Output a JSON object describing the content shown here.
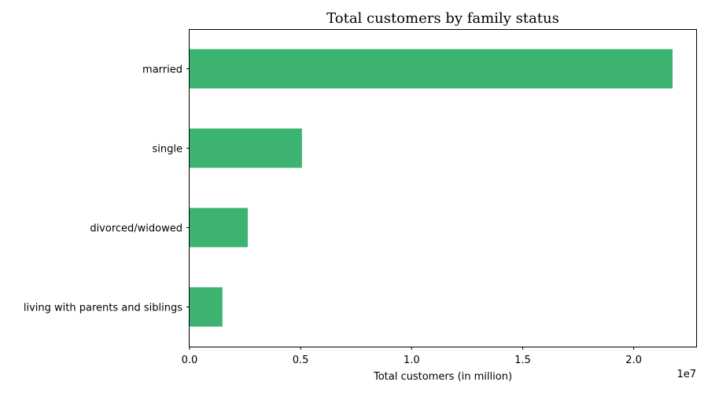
{
  "chart_data": {
    "type": "bar",
    "orientation": "horizontal",
    "title": "Total customers by family status",
    "xlabel": "Total customers (in million)",
    "ylabel": "",
    "x_offset_label": "1e7",
    "categories": [
      "married",
      "single",
      "divorced/widowed",
      "living with parents and siblings"
    ],
    "values": [
      21750000,
      5060000,
      2620000,
      1480000
    ],
    "xlim": [
      0,
      22850000
    ],
    "x_ticks": [
      0,
      5000000,
      10000000,
      15000000,
      20000000
    ],
    "x_tick_labels": [
      "0.0",
      "0.5",
      "1.0",
      "1.5",
      "2.0"
    ],
    "bar_color": "#3cb371",
    "grid": false,
    "legend": "none"
  }
}
